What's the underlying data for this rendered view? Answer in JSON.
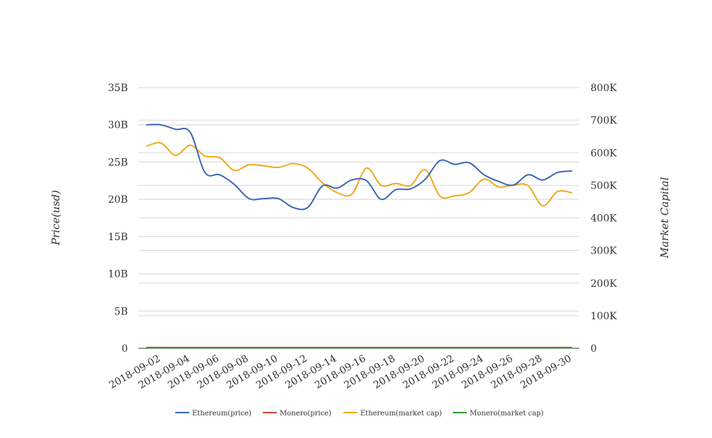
{
  "chart_data": {
    "type": "line",
    "title": "",
    "ylabel_left": "Price(usd)",
    "ylabel_right": "Market Capital",
    "grid": true,
    "legend_position": "bottom",
    "y_left": {
      "range": [
        0,
        35000000000
      ],
      "ticks": [
        0,
        5000000000,
        10000000000,
        15000000000,
        20000000000,
        25000000000,
        30000000000,
        35000000000
      ],
      "tick_labels": [
        "0",
        "5B",
        "10B",
        "15B",
        "20B",
        "25B",
        "30B",
        "35B"
      ]
    },
    "y_right": {
      "range": [
        0,
        800000
      ],
      "ticks": [
        0,
        100000,
        200000,
        300000,
        400000,
        500000,
        600000,
        700000,
        800000
      ],
      "tick_labels": [
        "0",
        "100K",
        "200K",
        "300K",
        "400K",
        "500K",
        "600K",
        "700K",
        "800K"
      ]
    },
    "x_tick_labels": [
      "2018-09-02",
      "2018-09-04",
      "2018-09-06",
      "2018-09-08",
      "2018-09-10",
      "2018-09-12",
      "2018-09-14",
      "2018-09-16",
      "2018-09-18",
      "2018-09-20",
      "2018-09-22",
      "2018-09-24",
      "2018-09-26",
      "2018-09-28",
      "2018-09-30"
    ],
    "x": [
      "2018-09-01",
      "2018-09-02",
      "2018-09-03",
      "2018-09-04",
      "2018-09-05",
      "2018-09-06",
      "2018-09-07",
      "2018-09-08",
      "2018-09-09",
      "2018-09-10",
      "2018-09-11",
      "2018-09-12",
      "2018-09-13",
      "2018-09-14",
      "2018-09-15",
      "2018-09-16",
      "2018-09-17",
      "2018-09-18",
      "2018-09-19",
      "2018-09-20",
      "2018-09-21",
      "2018-09-22",
      "2018-09-23",
      "2018-09-24",
      "2018-09-25",
      "2018-09-26",
      "2018-09-27",
      "2018-09-28",
      "2018-09-29",
      "2018-09-30"
    ],
    "series": [
      {
        "name": "Ethereum(price)",
        "axis": "left",
        "color": "#3a67b5",
        "values": [
          30.0,
          30.0,
          29.4,
          29.0,
          23.6,
          23.3,
          22.0,
          20.1,
          20.1,
          20.1,
          18.9,
          18.9,
          21.8,
          21.5,
          22.6,
          22.5,
          20.0,
          21.3,
          21.4,
          22.7,
          25.2,
          24.7,
          24.9,
          23.3,
          22.4,
          21.9,
          23.3,
          22.6,
          23.6,
          23.8
        ]
      },
      {
        "name": "Monero(price)",
        "axis": "left",
        "color": "#d14a2b",
        "values": [
          0.1,
          0.1,
          0.1,
          0.1,
          0.1,
          0.1,
          0.1,
          0.1,
          0.1,
          0.1,
          0.1,
          0.1,
          0.1,
          0.1,
          0.1,
          0.1,
          0.1,
          0.1,
          0.1,
          0.1,
          0.1,
          0.1,
          0.1,
          0.1,
          0.1,
          0.1,
          0.1,
          0.1,
          0.1,
          0.1
        ]
      },
      {
        "name": "Ethereum(market cap)",
        "axis": "right",
        "color": "#f0a81c",
        "values": [
          620000,
          630000,
          592000,
          623000,
          590000,
          585000,
          546000,
          563000,
          560000,
          555000,
          567000,
          553000,
          508000,
          478000,
          473000,
          553000,
          500000,
          506000,
          500000,
          548000,
          467000,
          468000,
          478000,
          519000,
          495000,
          501000,
          499000,
          437000,
          481000,
          477000
        ]
      },
      {
        "name": "Monero(market cap)",
        "axis": "right",
        "color": "#2f9a2f",
        "values": [
          1500,
          1500,
          1500,
          1500,
          1500,
          1500,
          1500,
          1500,
          1500,
          1500,
          1500,
          1500,
          1500,
          1500,
          1500,
          1500,
          1500,
          1500,
          1500,
          1500,
          1500,
          1500,
          1500,
          1500,
          1500,
          1500,
          1500,
          1500,
          1500,
          1500
        ]
      }
    ]
  }
}
